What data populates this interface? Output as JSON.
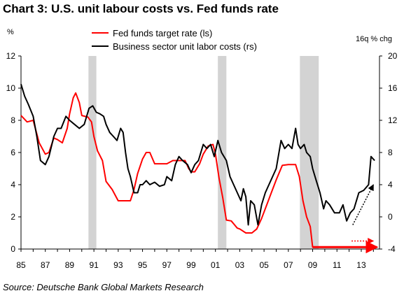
{
  "title": "Chart 3:  U.S. unit labour costs vs. Fed funds rate",
  "source": "Source: Deutsche Bank Global Markets Research",
  "chart_data": {
    "type": "line",
    "left_unit": "%",
    "right_unit": "16q % chg",
    "x_tick_labels": [
      "85",
      "87",
      "89",
      "91",
      "93",
      "95",
      "97",
      "99",
      "01",
      "03",
      "05",
      "07",
      "09",
      "11",
      "13"
    ],
    "x_tick_values": [
      1985,
      1987,
      1989,
      1991,
      1993,
      1995,
      1997,
      1999,
      2001,
      2003,
      2005,
      2007,
      2009,
      2011,
      2013
    ],
    "xlim": [
      1985,
      2014.5
    ],
    "ylim_left": [
      0,
      12
    ],
    "ylim_right": [
      -4,
      20
    ],
    "y_ticks_left": [
      0,
      2,
      4,
      6,
      8,
      10,
      12
    ],
    "y_ticks_right": [
      -4,
      0,
      4,
      8,
      12,
      16,
      20
    ],
    "legend_position": "top-center",
    "recessions": [
      [
        1990.55,
        1991.2
      ],
      [
        2001.2,
        2001.9
      ],
      [
        2007.95,
        2009.5
      ]
    ],
    "series": [
      {
        "name": "Fed funds target rate (ls)",
        "axis": "left",
        "color": "#ff0000",
        "points": [
          [
            1985,
            8.3
          ],
          [
            1985.5,
            7.9
          ],
          [
            1986,
            8
          ],
          [
            1986.5,
            6.6
          ],
          [
            1987,
            5.9
          ],
          [
            1987.3,
            6
          ],
          [
            1987.7,
            6.9
          ],
          [
            1988,
            6.8
          ],
          [
            1988.4,
            6.6
          ],
          [
            1988.8,
            7.5
          ],
          [
            1989,
            8.4
          ],
          [
            1989.3,
            9.4
          ],
          [
            1989.5,
            9.7
          ],
          [
            1989.8,
            9.1
          ],
          [
            1990,
            8.3
          ],
          [
            1990.5,
            8.2
          ],
          [
            1990.8,
            7.9
          ],
          [
            1991,
            7
          ],
          [
            1991.3,
            6.1
          ],
          [
            1991.7,
            5.5
          ],
          [
            1992,
            4.2
          ],
          [
            1992.5,
            3.7
          ],
          [
            1993,
            3
          ],
          [
            1994,
            3
          ],
          [
            1994.3,
            3.7
          ],
          [
            1994.6,
            4.7
          ],
          [
            1995,
            5.6
          ],
          [
            1995.3,
            6
          ],
          [
            1995.6,
            6
          ],
          [
            1996,
            5.3
          ],
          [
            1996.5,
            5.3
          ],
          [
            1997,
            5.3
          ],
          [
            1997.5,
            5.5
          ],
          [
            1998,
            5.5
          ],
          [
            1998.5,
            5.5
          ],
          [
            1998.8,
            5
          ],
          [
            1999,
            4.8
          ],
          [
            1999.3,
            4.8
          ],
          [
            1999.7,
            5.3
          ],
          [
            2000,
            5.9
          ],
          [
            2000.4,
            6.4
          ],
          [
            2000.8,
            6.5
          ],
          [
            2001,
            5.9
          ],
          [
            2001.3,
            4.4
          ],
          [
            2001.6,
            3.2
          ],
          [
            2001.9,
            1.8
          ],
          [
            2002.3,
            1.75
          ],
          [
            2002.8,
            1.3
          ],
          [
            2003,
            1.25
          ],
          [
            2003.5,
            1
          ],
          [
            2004,
            1
          ],
          [
            2004.4,
            1.25
          ],
          [
            2004.8,
            1.9
          ],
          [
            2005.2,
            2.7
          ],
          [
            2005.6,
            3.5
          ],
          [
            2006,
            4.3
          ],
          [
            2006.5,
            5.2
          ],
          [
            2007,
            5.25
          ],
          [
            2007.6,
            5.25
          ],
          [
            2007.9,
            4.5
          ],
          [
            2008.2,
            3
          ],
          [
            2008.5,
            2
          ],
          [
            2008.8,
            1.4
          ],
          [
            2009,
            0.12
          ],
          [
            2014.2,
            0.12
          ]
        ]
      },
      {
        "name": "Business sector unit labor costs (rs)",
        "axis": "right",
        "color": "#000000",
        "points": [
          [
            1985,
            16.5
          ],
          [
            1985.3,
            15
          ],
          [
            1985.6,
            14
          ],
          [
            1986,
            12.5
          ],
          [
            1986.3,
            10
          ],
          [
            1986.6,
            7
          ],
          [
            1987,
            6.5
          ],
          [
            1987.3,
            7.5
          ],
          [
            1987.7,
            10
          ],
          [
            1988,
            11
          ],
          [
            1988.3,
            11
          ],
          [
            1988.7,
            12.5
          ],
          [
            1989,
            12
          ],
          [
            1989.4,
            11.5
          ],
          [
            1989.8,
            11
          ],
          [
            1990.2,
            11.5
          ],
          [
            1990.6,
            13.5
          ],
          [
            1990.9,
            13.8
          ],
          [
            1991.2,
            13
          ],
          [
            1991.5,
            12.8
          ],
          [
            1991.8,
            12.5
          ],
          [
            1992,
            11.5
          ],
          [
            1992.3,
            10.5
          ],
          [
            1992.6,
            10
          ],
          [
            1992.9,
            9.5
          ],
          [
            1993.2,
            11
          ],
          [
            1993.4,
            10.5
          ],
          [
            1993.6,
            8
          ],
          [
            1993.8,
            6
          ],
          [
            1994,
            5
          ],
          [
            1994.3,
            3
          ],
          [
            1994.6,
            3
          ],
          [
            1994.8,
            4
          ],
          [
            1995,
            4
          ],
          [
            1995.3,
            4.5
          ],
          [
            1995.6,
            4
          ],
          [
            1996,
            4.3
          ],
          [
            1996.4,
            3.8
          ],
          [
            1996.8,
            4
          ],
          [
            1997,
            5
          ],
          [
            1997.4,
            4.5
          ],
          [
            1997.7,
            6.5
          ],
          [
            1998,
            7.5
          ],
          [
            1998.3,
            7
          ],
          [
            1998.7,
            6.5
          ],
          [
            1999,
            5.5
          ],
          [
            1999.3,
            6.5
          ],
          [
            1999.6,
            7
          ],
          [
            2000,
            9
          ],
          [
            2000.3,
            8.5
          ],
          [
            2000.6,
            9
          ],
          [
            2000.9,
            7.5
          ],
          [
            2001.2,
            9.5
          ],
          [
            2001.5,
            8
          ],
          [
            2001.9,
            7
          ],
          [
            2002.2,
            5
          ],
          [
            2002.5,
            4
          ],
          [
            2002.8,
            3
          ],
          [
            2003.1,
            2
          ],
          [
            2003.3,
            3.5
          ],
          [
            2003.5,
            2.5
          ],
          [
            2003.7,
            -1
          ],
          [
            2003.9,
            2
          ],
          [
            2004.2,
            1.5
          ],
          [
            2004.5,
            -1
          ],
          [
            2004.8,
            1.5
          ],
          [
            2005.1,
            3
          ],
          [
            2005.4,
            4
          ],
          [
            2005.7,
            5
          ],
          [
            2006,
            6
          ],
          [
            2006.4,
            9.5
          ],
          [
            2006.7,
            8.5
          ],
          [
            2007,
            9
          ],
          [
            2007.3,
            8.5
          ],
          [
            2007.6,
            11
          ],
          [
            2007.8,
            9
          ],
          [
            2008,
            8.5
          ],
          [
            2008.3,
            9
          ],
          [
            2008.5,
            8
          ],
          [
            2008.8,
            7.5
          ],
          [
            2009,
            6
          ],
          [
            2009.3,
            4.5
          ],
          [
            2009.6,
            3
          ],
          [
            2009.9,
            1
          ],
          [
            2010.1,
            2
          ],
          [
            2010.4,
            1.5
          ],
          [
            2010.8,
            0.5
          ],
          [
            2011.2,
            0.5
          ],
          [
            2011.5,
            1.5
          ],
          [
            2011.8,
            -0.5
          ],
          [
            2012.1,
            0.5
          ],
          [
            2012.4,
            1
          ],
          [
            2012.8,
            3
          ],
          [
            2013.2,
            3.3
          ],
          [
            2013.6,
            4
          ],
          [
            2013.8,
            7.5
          ],
          [
            2014.1,
            7
          ]
        ]
      }
    ],
    "annotations": [
      {
        "type": "dotted-arrow",
        "axis": "right",
        "color": "#000000",
        "from": [
          2012.3,
          -1
        ],
        "to": [
          2014,
          4
        ]
      },
      {
        "type": "dotted-arrow",
        "axis": "left",
        "color": "#ff0000",
        "from": [
          2012.2,
          0.5
        ],
        "to": [
          2014,
          0.5
        ]
      },
      {
        "type": "arrow",
        "axis": "left",
        "color": "#ff0000",
        "from": [
          2009,
          0.12
        ],
        "to": [
          2014.3,
          0.12
        ]
      }
    ]
  }
}
